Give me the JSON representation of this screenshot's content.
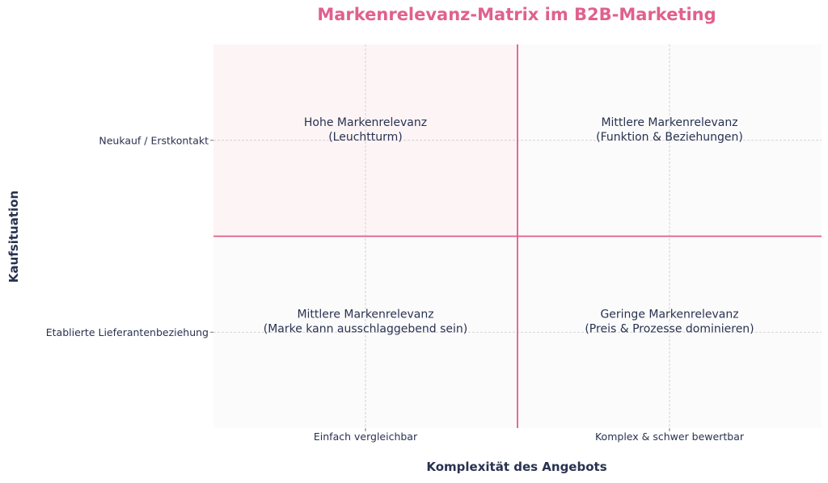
{
  "chart_data": {
    "type": "quadrant",
    "title": "Markenrelevanz-Matrix im B2B-Marketing",
    "xlabel": "Komplexität des Angebots",
    "ylabel": "Kaufsituation",
    "xlim": [
      0,
      2
    ],
    "ylim": [
      0,
      2
    ],
    "x_divider": 1,
    "y_divider": 1,
    "grid": true,
    "x_ticks": [
      {
        "value": 0.5,
        "label": "Einfach vergleichbar"
      },
      {
        "value": 1.5,
        "label": "Komplex & schwer bewertbar"
      }
    ],
    "y_ticks": [
      {
        "value": 1.5,
        "label": "Neukauf / Erstkontakt"
      },
      {
        "value": 0.5,
        "label": "Etablierte Lieferantenbeziehung"
      }
    ],
    "quadrants": [
      {
        "x": 0.5,
        "y": 1.5,
        "line1": "Hohe Markenrelevanz",
        "line2": "(Leuchtturm)",
        "fill": "#fdf4f6"
      },
      {
        "x": 1.5,
        "y": 1.5,
        "line1": "Mittlere Markenrelevanz",
        "line2": "(Funktion & Beziehungen)",
        "fill": "#fcfbfc"
      },
      {
        "x": 0.5,
        "y": 0.5,
        "line1": "Mittlere Markenrelevanz",
        "line2": "(Marke kann ausschlaggebend sein)",
        "fill": "#fcfbfc"
      },
      {
        "x": 1.5,
        "y": 0.5,
        "line1": "Geringe Markenrelevanz",
        "line2": "(Preis & Prozesse dominieren)",
        "fill": "#fcfbfc"
      }
    ],
    "colors": {
      "title": "#e0608e",
      "divider": "#e05c8a",
      "text": "#283250",
      "grid": "#c8c8c8"
    }
  }
}
